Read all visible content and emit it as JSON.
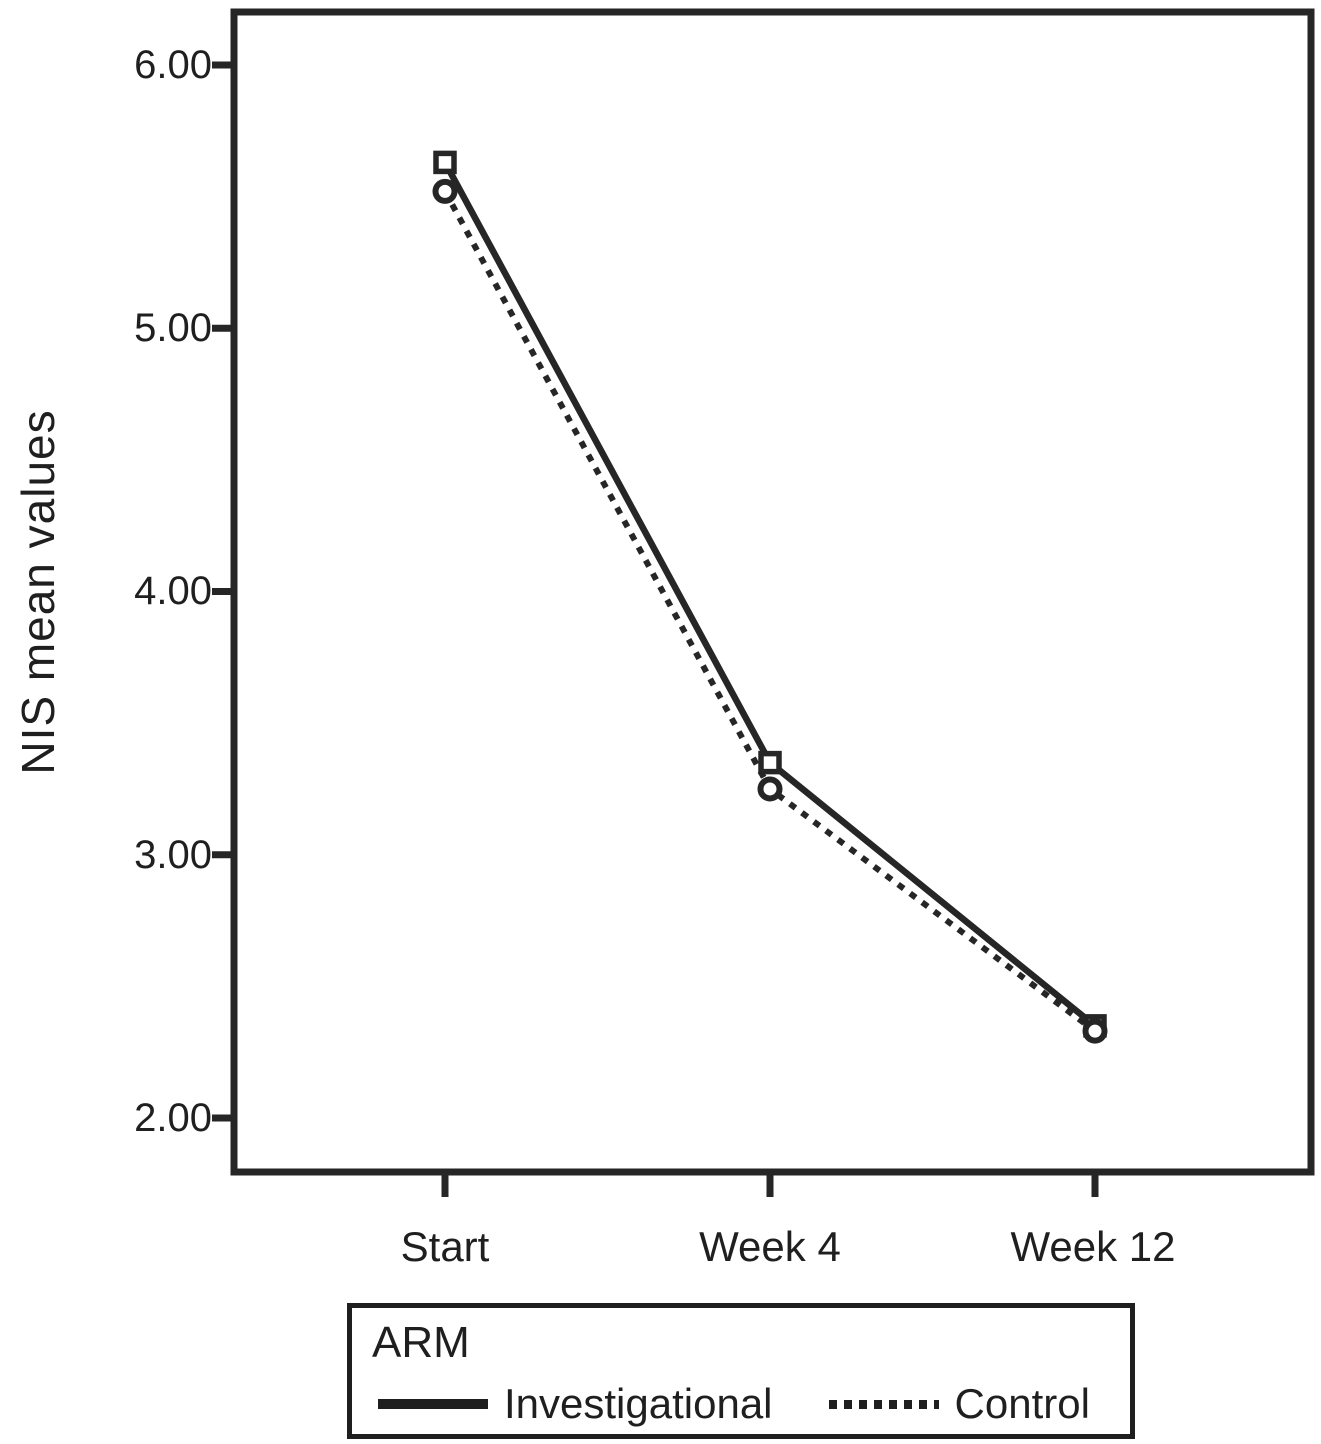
{
  "figure": {
    "background": "#ffffff",
    "ink_color": "#1f1f1f",
    "line_color": "#262626"
  },
  "chart_data": {
    "type": "line",
    "title": "",
    "xlabel": "",
    "ylabel": "NIS mean values",
    "categories": [
      "Start",
      "Week 4",
      "Week 12"
    ],
    "yticks": [
      6.0,
      5.0,
      4.0,
      3.0,
      2.0
    ],
    "ytick_labels": [
      "6.00",
      "5.00",
      "4.00",
      "3.00",
      "2.00"
    ],
    "ylim": [
      1.8,
      6.2
    ],
    "grid": false,
    "legend_position": "bottom",
    "series": [
      {
        "name": "Investigational",
        "style": "solid",
        "marker": "square",
        "values": [
          5.63,
          3.35,
          2.35
        ]
      },
      {
        "name": "Control",
        "style": "dotted",
        "marker": "circle",
        "values": [
          5.52,
          3.25,
          2.33
        ]
      }
    ]
  },
  "legend": {
    "title": "ARM",
    "items": [
      {
        "label": "Investigational",
        "line_style": "solid"
      },
      {
        "label": "Control",
        "line_style": "dotted"
      }
    ]
  }
}
